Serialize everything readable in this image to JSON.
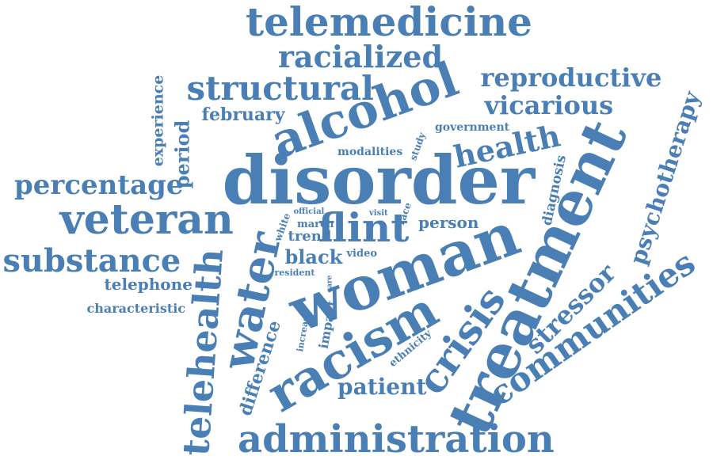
{
  "color": "#4a7fb5",
  "background": "#ffffff",
  "words": [
    "telemedicine",
    "racialized",
    "structural",
    "alcohol",
    "reproductive",
    "vicarious",
    "february",
    "government",
    "health",
    "experience",
    "period",
    "modalities",
    "study",
    "disorder",
    "diagnosis",
    "psychotherapy",
    "percentage",
    "treatment",
    "veteran",
    "official",
    "visit",
    "race",
    "white",
    "march",
    "flint",
    "person",
    "trend",
    "water",
    "substance",
    "black",
    "video",
    "resident",
    "woman",
    "stressor",
    "telephone",
    "communities",
    "characteristic",
    "telehealth",
    "care",
    "increase",
    "impact",
    "difference",
    "racism",
    "crisis",
    "ethnicity",
    "patient",
    "administration"
  ]
}
